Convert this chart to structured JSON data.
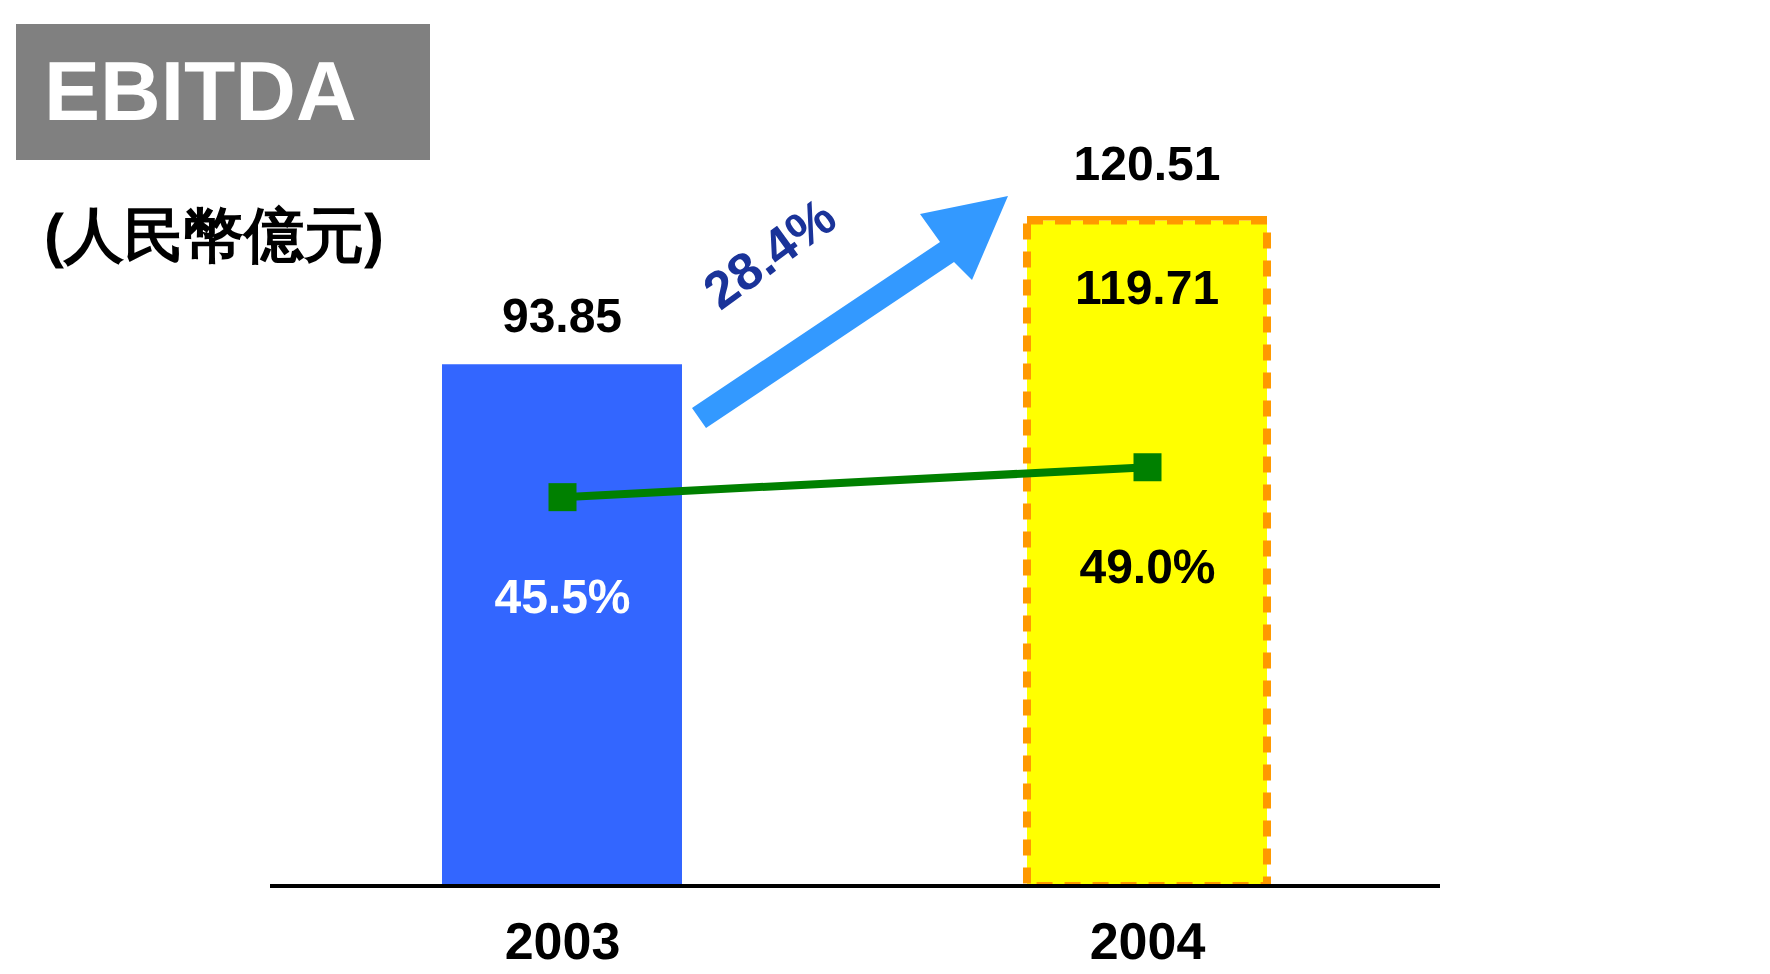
{
  "chart_data": {
    "type": "bar",
    "title": "EBITDA",
    "subtitle": "(人民幣億元)",
    "categories": [
      "2003",
      "2004"
    ],
    "stacked": true,
    "series": [
      {
        "colors": [
          "#3366ff",
          "#ffff00"
        ],
        "values": [
          93.85,
          119.71
        ],
        "value_labels": [
          "93.85",
          "119.71"
        ]
      },
      {
        "color": "#ff9900",
        "values": [
          null,
          0.8
        ]
      },
      {
        "type": "line",
        "axis": "y2",
        "color": "#008000",
        "values": [
          45.5,
          49.0
        ],
        "value_labels": [
          "45.5%",
          "49.0%"
        ],
        "marker": "square"
      }
    ],
    "totals": [
      null,
      "120.51"
    ],
    "annotations": [
      "28.4%"
    ]
  }
}
